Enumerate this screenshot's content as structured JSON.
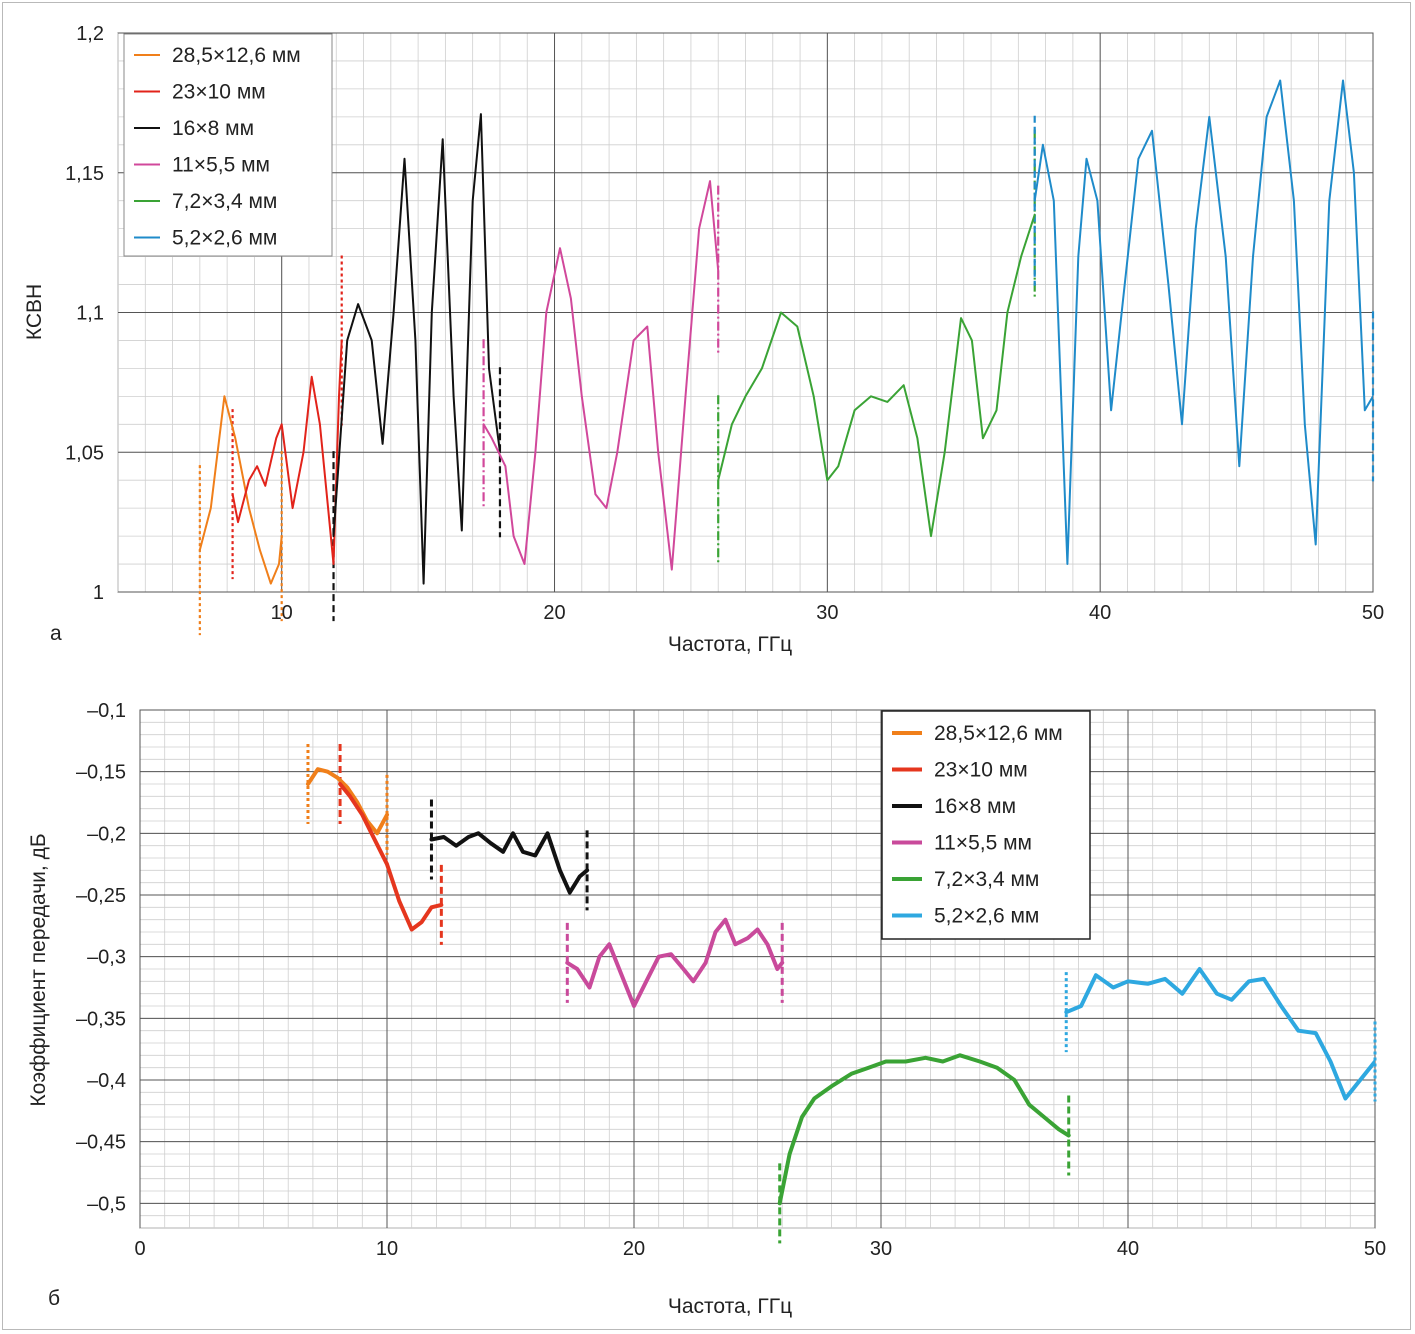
{
  "chart_data": [
    {
      "panel_label": "а",
      "type": "line",
      "xlabel": "Частота, ГГц",
      "ylabel": "КСВН",
      "xlim": [
        4,
        50
      ],
      "ylim": [
        1,
        1.2
      ],
      "x_ticks": [
        10,
        20,
        30,
        40,
        50
      ],
      "y_ticks": [
        1,
        1.05,
        1.1,
        1.15,
        1.2
      ],
      "x_tick_labels": [
        "10",
        "20",
        "30",
        "40",
        "50"
      ],
      "y_tick_labels": [
        "1",
        "1,05",
        "1,1",
        "1,15",
        "1,2"
      ],
      "grid": true,
      "legend_position": "top-left",
      "series": [
        {
          "name": "28,5×12,6 мм",
          "color": "#f07f1a",
          "bounds": [
            7.0,
            10.0
          ],
          "bound_style": "dotted",
          "x": [
            7.0,
            7.4,
            7.9,
            8.3,
            8.8,
            9.2,
            9.6,
            9.9,
            10.0
          ],
          "y": [
            1.015,
            1.03,
            1.07,
            1.055,
            1.03,
            1.015,
            1.003,
            1.01,
            1.02
          ]
        },
        {
          "name": "23×10 мм",
          "color": "#e2231a",
          "bounds": [
            8.2,
            12.2
          ],
          "bound_style": "dotted",
          "x": [
            8.2,
            8.4,
            8.8,
            9.1,
            9.4,
            9.8,
            10.0,
            10.4,
            10.8,
            11.1,
            11.4,
            11.7,
            11.9,
            12.1,
            12.2
          ],
          "y": [
            1.035,
            1.025,
            1.04,
            1.045,
            1.038,
            1.055,
            1.06,
            1.03,
            1.05,
            1.077,
            1.06,
            1.03,
            1.01,
            1.07,
            1.09
          ]
        },
        {
          "name": "16×8 мм",
          "color": "#111111",
          "bounds": [
            11.9,
            18.0
          ],
          "bound_style": "dashed",
          "x": [
            11.9,
            12.4,
            12.8,
            13.3,
            13.7,
            14.1,
            14.5,
            14.9,
            15.2,
            15.5,
            15.9,
            16.3,
            16.6,
            17.0,
            17.3,
            17.6,
            18.0
          ],
          "y": [
            1.02,
            1.09,
            1.103,
            1.09,
            1.053,
            1.1,
            1.155,
            1.09,
            1.003,
            1.1,
            1.162,
            1.07,
            1.022,
            1.14,
            1.171,
            1.08,
            1.05
          ]
        },
        {
          "name": "11×5,5 мм",
          "color": "#d1489b",
          "bounds": [
            17.4,
            26.0
          ],
          "bound_style": "dashdot",
          "x": [
            17.4,
            17.7,
            18.2,
            18.5,
            18.9,
            19.3,
            19.7,
            20.2,
            20.6,
            21.0,
            21.5,
            21.9,
            22.3,
            22.9,
            23.4,
            23.8,
            24.3,
            24.8,
            25.3,
            25.7,
            26.0
          ],
          "y": [
            1.06,
            1.055,
            1.045,
            1.02,
            1.01,
            1.05,
            1.1,
            1.123,
            1.105,
            1.07,
            1.035,
            1.03,
            1.05,
            1.09,
            1.095,
            1.05,
            1.008,
            1.07,
            1.13,
            1.147,
            1.115
          ]
        },
        {
          "name": "7,2×3,4 мм",
          "color": "#3aa335",
          "bounds": [
            26.0,
            37.6
          ],
          "bound_style": "dashdot",
          "x": [
            26.0,
            26.5,
            27.0,
            27.6,
            28.3,
            28.9,
            29.5,
            30.0,
            30.4,
            31.0,
            31.6,
            32.2,
            32.8,
            33.3,
            33.8,
            34.3,
            34.9,
            35.3,
            35.7,
            36.2,
            36.6,
            37.1,
            37.6
          ],
          "y": [
            1.04,
            1.06,
            1.07,
            1.08,
            1.1,
            1.095,
            1.07,
            1.04,
            1.045,
            1.065,
            1.07,
            1.068,
            1.074,
            1.055,
            1.02,
            1.05,
            1.098,
            1.09,
            1.055,
            1.065,
            1.1,
            1.12,
            1.135
          ]
        },
        {
          "name": "5,2×2,6 мм",
          "color": "#1f8bca",
          "bounds": [
            37.6,
            50.0
          ],
          "bound_style": "dashed",
          "x": [
            37.6,
            37.9,
            38.3,
            38.8,
            39.2,
            39.5,
            39.9,
            40.4,
            40.9,
            41.4,
            41.9,
            42.5,
            43.0,
            43.5,
            44.0,
            44.6,
            45.1,
            45.6,
            46.1,
            46.6,
            47.1,
            47.5,
            47.9,
            48.4,
            48.9,
            49.3,
            49.7,
            50.0
          ],
          "y": [
            1.14,
            1.16,
            1.14,
            1.01,
            1.12,
            1.155,
            1.14,
            1.065,
            1.11,
            1.155,
            1.165,
            1.11,
            1.06,
            1.13,
            1.17,
            1.12,
            1.045,
            1.12,
            1.17,
            1.183,
            1.14,
            1.06,
            1.017,
            1.14,
            1.183,
            1.15,
            1.065,
            1.07
          ]
        }
      ]
    },
    {
      "panel_label": "б",
      "type": "line",
      "xlabel": "Частота, ГГц",
      "ylabel": "Коэффициент передачи, дБ",
      "xlim": [
        0,
        50
      ],
      "ylim": [
        -0.52,
        -0.1
      ],
      "x_ticks": [
        0,
        10,
        20,
        30,
        40,
        50
      ],
      "y_ticks": [
        -0.5,
        -0.45,
        -0.4,
        -0.35,
        -0.3,
        -0.25,
        -0.2,
        -0.15,
        -0.1
      ],
      "x_tick_labels": [
        "0",
        "10",
        "20",
        "30",
        "40",
        "50"
      ],
      "y_tick_labels": [
        "–0,5",
        "–0,45",
        "–0,4",
        "–0,35",
        "–0,3",
        "–0,25",
        "–0,2",
        "–0,15",
        "–0,1"
      ],
      "grid": true,
      "legend_position": "top-right",
      "series": [
        {
          "name": "28,5×12,6 мм",
          "color": "#f07f1a",
          "bounds": [
            6.8,
            10.0
          ],
          "bound_style": "dotted",
          "x": [
            6.8,
            7.2,
            7.6,
            8.0,
            8.4,
            8.8,
            9.2,
            9.6,
            10.0
          ],
          "y": [
            -0.16,
            -0.148,
            -0.15,
            -0.155,
            -0.163,
            -0.175,
            -0.19,
            -0.2,
            -0.185
          ]
        },
        {
          "name": "23×10 мм",
          "color": "#e5361e",
          "bounds": [
            8.1,
            12.2
          ],
          "bound_style": "dashed",
          "x": [
            8.1,
            8.5,
            9.0,
            9.5,
            10.0,
            10.5,
            11.0,
            11.4,
            11.8,
            12.2
          ],
          "y": [
            -0.16,
            -0.17,
            -0.185,
            -0.205,
            -0.225,
            -0.255,
            -0.278,
            -0.272,
            -0.26,
            -0.258
          ]
        },
        {
          "name": "16×8 мм",
          "color": "#111111",
          "bounds": [
            11.8,
            18.1
          ],
          "bound_style": "dashed",
          "x": [
            11.8,
            12.3,
            12.8,
            13.3,
            13.7,
            14.2,
            14.7,
            15.1,
            15.5,
            16.0,
            16.5,
            17.0,
            17.4,
            17.8,
            18.1
          ],
          "y": [
            -0.205,
            -0.203,
            -0.21,
            -0.203,
            -0.2,
            -0.208,
            -0.215,
            -0.2,
            -0.215,
            -0.218,
            -0.2,
            -0.23,
            -0.248,
            -0.235,
            -0.23
          ]
        },
        {
          "name": "11×5,5 мм",
          "color": "#c94a9b",
          "bounds": [
            17.3,
            26.0
          ],
          "bound_style": "dashed",
          "x": [
            17.3,
            17.7,
            18.2,
            18.6,
            19.0,
            19.5,
            20.0,
            20.5,
            21.0,
            21.5,
            22.0,
            22.4,
            22.9,
            23.3,
            23.7,
            24.1,
            24.6,
            25.0,
            25.4,
            25.8,
            26.0
          ],
          "y": [
            -0.305,
            -0.31,
            -0.325,
            -0.3,
            -0.29,
            -0.315,
            -0.34,
            -0.32,
            -0.3,
            -0.298,
            -0.31,
            -0.32,
            -0.305,
            -0.28,
            -0.27,
            -0.29,
            -0.285,
            -0.278,
            -0.29,
            -0.31,
            -0.305
          ]
        },
        {
          "name": "7,2×3,4 мм",
          "color": "#3aa335",
          "bounds": [
            25.9,
            37.6
          ],
          "bound_style": "dashed",
          "x": [
            25.9,
            26.3,
            26.8,
            27.3,
            28.0,
            28.8,
            29.5,
            30.2,
            31.0,
            31.8,
            32.5,
            33.2,
            34.0,
            34.7,
            35.4,
            36.0,
            36.6,
            37.2,
            37.6
          ],
          "y": [
            -0.5,
            -0.46,
            -0.43,
            -0.415,
            -0.405,
            -0.395,
            -0.39,
            -0.385,
            -0.385,
            -0.382,
            -0.385,
            -0.38,
            -0.385,
            -0.39,
            -0.4,
            -0.42,
            -0.43,
            -0.44,
            -0.445
          ]
        },
        {
          "name": "5,2×2,6 мм",
          "color": "#2ea8e0",
          "bounds": [
            37.5,
            50.0
          ],
          "bound_style": "dotted",
          "x": [
            37.5,
            38.1,
            38.7,
            39.4,
            40.0,
            40.8,
            41.5,
            42.2,
            42.9,
            43.6,
            44.2,
            44.9,
            45.5,
            46.2,
            46.9,
            47.6,
            48.2,
            48.8,
            49.4,
            50.0
          ],
          "y": [
            -0.345,
            -0.34,
            -0.315,
            -0.325,
            -0.32,
            -0.322,
            -0.318,
            -0.33,
            -0.31,
            -0.33,
            -0.335,
            -0.32,
            -0.318,
            -0.34,
            -0.36,
            -0.362,
            -0.385,
            -0.415,
            -0.4,
            -0.385
          ]
        }
      ]
    }
  ]
}
